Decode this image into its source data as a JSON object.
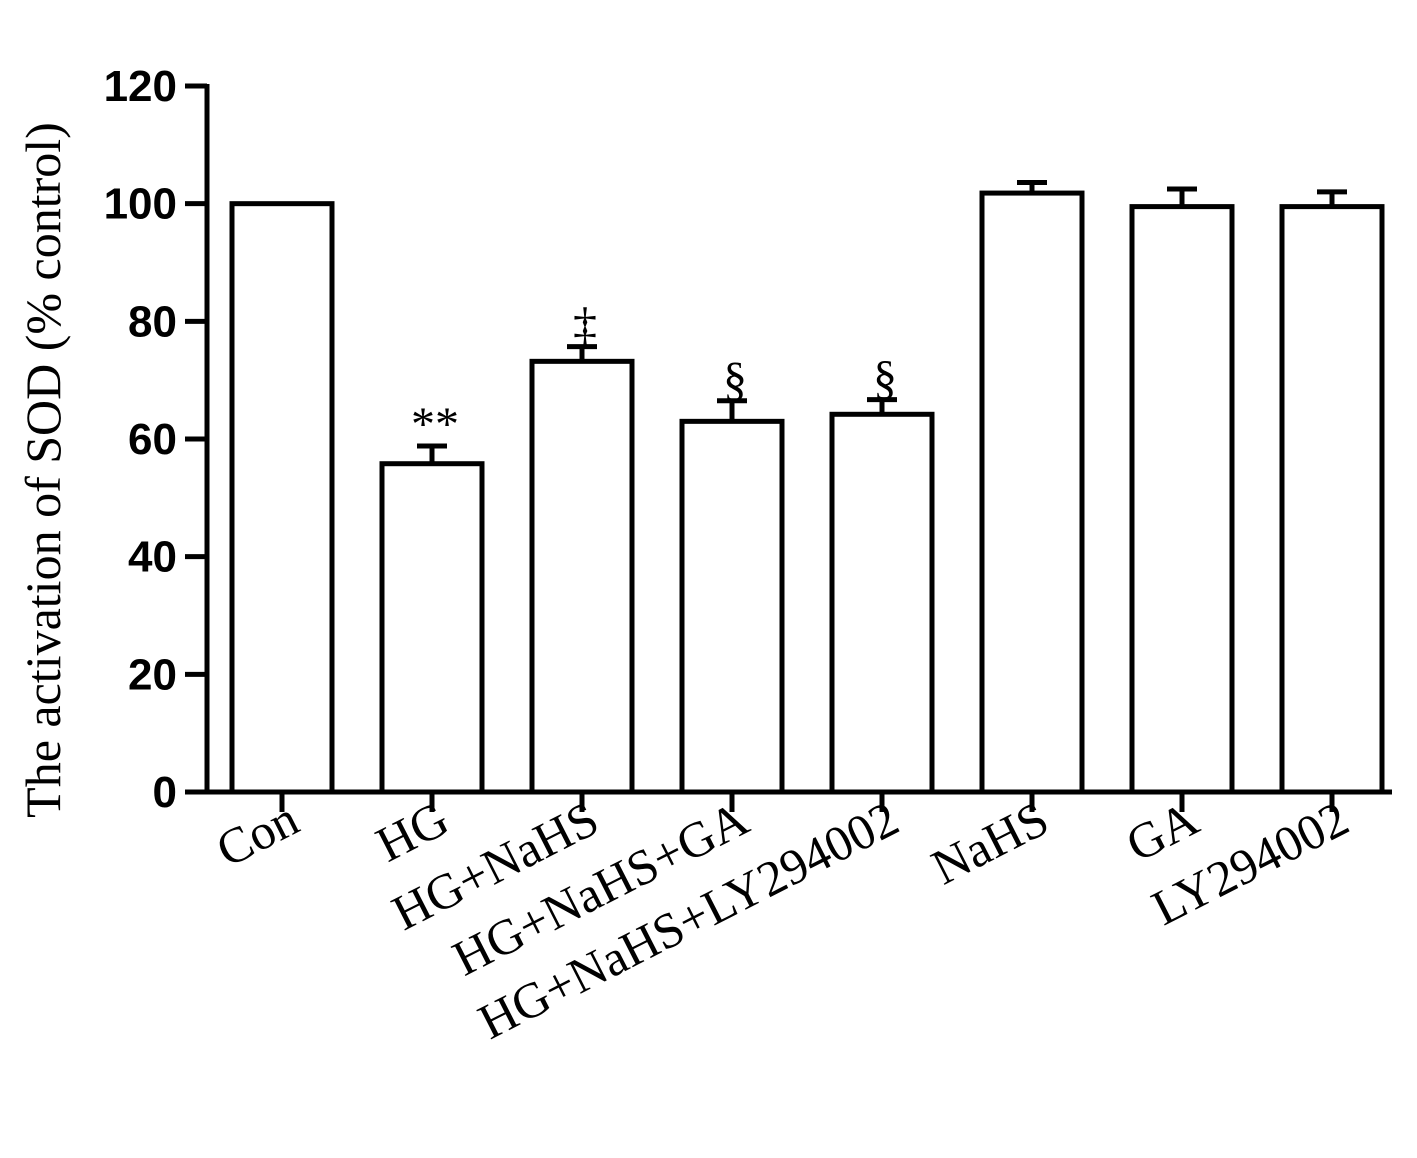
{
  "chart_data": {
    "type": "bar",
    "title": "",
    "xlabel": "",
    "ylabel": "The activation of SOD (% control)",
    "ylim": [
      0,
      120
    ],
    "yticks": [
      0,
      20,
      40,
      60,
      80,
      100,
      120
    ],
    "categories": [
      "Con",
      "HG",
      "HG+NaHS",
      "HG+NaHS+GA",
      "HG+NaHS+LY294002",
      "NaHS",
      "GA",
      "LY294002"
    ],
    "values": [
      100,
      55.8,
      73.2,
      63.0,
      64.2,
      101.8,
      99.5,
      99.5
    ],
    "errors": [
      0,
      3.0,
      2.5,
      3.5,
      2.5,
      1.8,
      3.0,
      2.5
    ],
    "annotations": [
      "",
      "**",
      "‡",
      "§",
      "§",
      "",
      "",
      ""
    ],
    "bar_fill": "#ffffff",
    "bar_stroke": "#000000",
    "grid": false
  }
}
